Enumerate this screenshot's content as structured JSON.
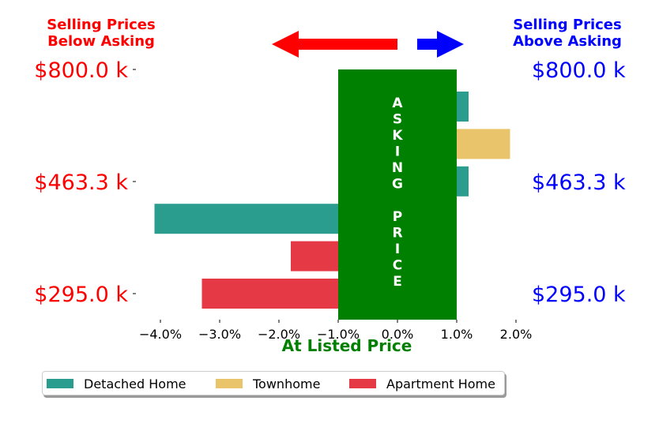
{
  "header": {
    "left": "Selling Prices\nBelow Asking",
    "right": "Selling Prices\nAbove Asking"
  },
  "colors": {
    "below": "#ff0000",
    "above": "#0000ff",
    "asking_box": "#008000",
    "detached": "#2a9d8f",
    "townhome": "#e9c46a",
    "apartment": "#e63946"
  },
  "chart_data": {
    "type": "bar",
    "orientation": "horizontal",
    "xlabel": "At Listed Price",
    "xlim": [
      -4.4,
      2.0
    ],
    "xticks": [
      "−4.0%",
      "−3.0%",
      "−2.0%",
      "−1.0%",
      "0.0%",
      "1.0%",
      "2.0%"
    ],
    "xtick_values": [
      -4,
      -3,
      -2,
      -1,
      0,
      1,
      2
    ],
    "left_tick_labels": [
      "$800.0 k",
      "$463.3 k",
      "$295.0 k"
    ],
    "right_tick_labels": [
      "$800.0 k",
      "$463.3 k",
      "$295.0 k"
    ],
    "asking_price_box": {
      "x_range": [
        -1.0,
        1.0
      ],
      "text": "ASKING PRICE"
    },
    "series": [
      {
        "name": "Detached Home",
        "values": [
          1.2,
          null,
          1.2,
          -4.1,
          null,
          null
        ]
      },
      {
        "name": "Townhome",
        "values": [
          null,
          1.9,
          null,
          null,
          null,
          null
        ]
      },
      {
        "name": "Apartment Home",
        "values": [
          null,
          null,
          null,
          null,
          -1.8,
          -3.3
        ]
      }
    ],
    "legend_position": "bottom"
  }
}
